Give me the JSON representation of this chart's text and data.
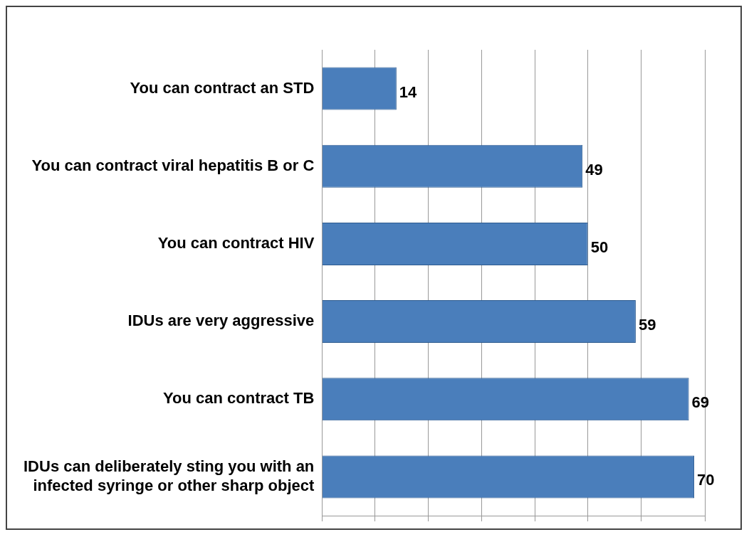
{
  "chart_data": {
    "type": "bar",
    "orientation": "horizontal",
    "categories": [
      "You can contract an STD",
      "You can contract viral hepatitis B or C",
      "You can contract HIV",
      "IDUs are very aggressive",
      "You can contract TB",
      "IDUs can deliberately sting you with an infected syringe or other sharp object"
    ],
    "values": [
      14,
      49,
      50,
      59,
      69,
      70
    ],
    "color": "#4a7ebb",
    "data_labels": true,
    "xlim": [
      0,
      72
    ],
    "grid": "x",
    "tick_labels": "y",
    "legend": false
  }
}
